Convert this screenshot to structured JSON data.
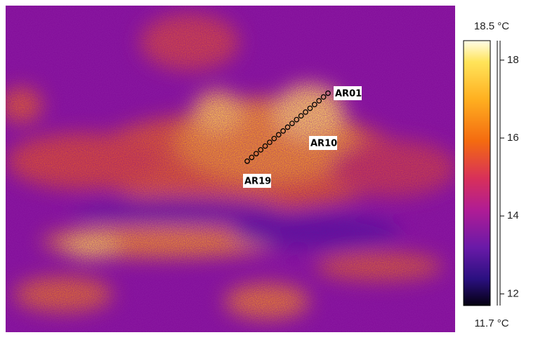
{
  "scale": {
    "max": {
      "value": 18.5,
      "label": "18.5 °C"
    },
    "min": {
      "value": 11.7,
      "label": "11.7 °C"
    },
    "ticks": [
      12,
      14,
      16,
      18
    ]
  },
  "markers": [
    "AR01",
    "AR10",
    "AR19"
  ]
}
